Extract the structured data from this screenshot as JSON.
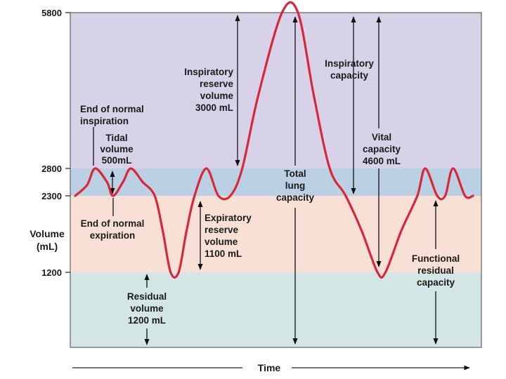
{
  "chart_data": {
    "type": "line",
    "title": "",
    "xlabel": "Time",
    "ylabel_lines": [
      "Volume",
      "(mL)"
    ],
    "y_ticks": [
      5800,
      2800,
      2300,
      1200
    ],
    "y_range": [
      0,
      5800
    ],
    "grid": false,
    "bands": [
      {
        "from": 2800,
        "to": 5800,
        "color": "#d8d2e8"
      },
      {
        "from": 2300,
        "to": 2800,
        "color": "#bcd0e4"
      },
      {
        "from": 1200,
        "to": 2300,
        "color": "#f9e0d6"
      },
      {
        "from": 0,
        "to": 1200,
        "color": "#d3e6e5"
      }
    ],
    "series": [
      {
        "color": "#d62839",
        "points": [
          [
            0.0,
            2300
          ],
          [
            0.03,
            2500
          ],
          [
            0.05,
            2800
          ],
          [
            0.08,
            2550
          ],
          [
            0.095,
            2300
          ],
          [
            0.12,
            2550
          ],
          [
            0.14,
            2800
          ],
          [
            0.17,
            2550
          ],
          [
            0.2,
            2300
          ],
          [
            0.22,
            1800
          ],
          [
            0.24,
            1200
          ],
          [
            0.26,
            1200
          ],
          [
            0.28,
            1800
          ],
          [
            0.3,
            2300
          ],
          [
            0.33,
            2800
          ],
          [
            0.36,
            2300
          ],
          [
            0.39,
            2300
          ],
          [
            0.42,
            2800
          ],
          [
            0.46,
            4200
          ],
          [
            0.52,
            5800
          ],
          [
            0.56,
            5800
          ],
          [
            0.6,
            4200
          ],
          [
            0.64,
            2800
          ],
          [
            0.68,
            2300
          ],
          [
            0.72,
            1800
          ],
          [
            0.76,
            1200
          ],
          [
            0.78,
            1200
          ],
          [
            0.82,
            1800
          ],
          [
            0.86,
            2300
          ],
          [
            0.88,
            2800
          ],
          [
            0.91,
            2300
          ],
          [
            0.93,
            2300
          ],
          [
            0.95,
            2800
          ],
          [
            0.98,
            2300
          ],
          [
            1.0,
            2300
          ]
        ]
      }
    ],
    "annotations": {
      "end_normal_inspiration": [
        "End of normal",
        "inspiration"
      ],
      "tidal_volume": [
        "Tidal",
        "volume",
        "500mL"
      ],
      "end_normal_expiration": [
        "End of normal",
        "expiration"
      ],
      "residual_volume": [
        "Residual",
        "volume",
        "1200 mL"
      ],
      "inspiratory_reserve_volume": [
        "Inspiratory",
        "reserve",
        "volume",
        "3000 mL"
      ],
      "expiratory_reserve_volume": [
        "Expiratory",
        "reserve",
        "volume",
        "1100 mL"
      ],
      "total_lung_capacity": [
        "Total",
        "lung",
        "capacity"
      ],
      "inspiratory_capacity": [
        "Inspiratory",
        "capacity"
      ],
      "vital_capacity": [
        "Vital",
        "capacity",
        "4600 mL"
      ],
      "functional_residual_capacity": [
        "Functional",
        "residual",
        "capacity"
      ]
    }
  }
}
